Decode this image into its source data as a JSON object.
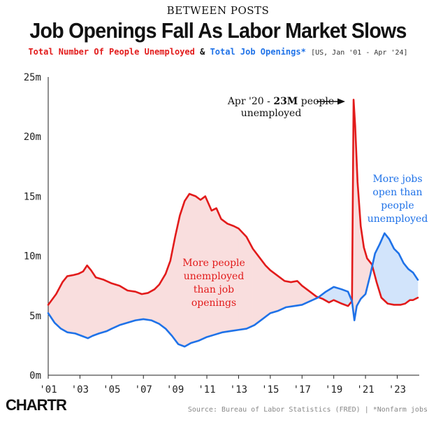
{
  "header": {
    "kicker": "BETWEEN POSTS",
    "title": "Job Openings Fall As Labor Market Slows",
    "subtitle_red": "Total Number Of People Unemployed",
    "subtitle_amp": "&",
    "subtitle_blue": "Total Job Openings*",
    "subtitle_meta": "[US, Jan '01 - Apr '24]"
  },
  "footer": {
    "brand": "CHARTR",
    "source": "Source: Bureau of Labor Statistics (FRED)  | *Nonfarm jobs"
  },
  "colors": {
    "unemployed": "#e21b1b",
    "openings": "#1f72e8",
    "fill_unemployed_higher": "#f9dede",
    "fill_openings_higher": "#d2e4fb"
  },
  "chart_data": {
    "type": "line",
    "xlim": [
      2001,
      2024.3
    ],
    "ylim": [
      0,
      25
    ],
    "y_ticks": [
      0,
      5,
      10,
      15,
      20,
      25
    ],
    "y_tick_labels": [
      "0m",
      "5m",
      "10m",
      "15m",
      "20m",
      "25m"
    ],
    "x_ticks": [
      2001,
      2003,
      2005,
      2007,
      2009,
      2011,
      2013,
      2015,
      2017,
      2019,
      2021,
      2023
    ],
    "x_tick_labels": [
      "'01",
      "'03",
      "'05",
      "'07",
      "'09",
      "'11",
      "'13",
      "'15",
      "'17",
      "'19",
      "'21",
      "'23"
    ],
    "grid": false,
    "series": [
      {
        "name": "Total Number Of People Unemployed",
        "color": "#e21b1b",
        "points": [
          [
            2001.0,
            5.9
          ],
          [
            2001.5,
            6.8
          ],
          [
            2001.9,
            7.8
          ],
          [
            2002.2,
            8.3
          ],
          [
            2002.6,
            8.4
          ],
          [
            2002.9,
            8.5
          ],
          [
            2003.2,
            8.7
          ],
          [
            2003.45,
            9.2
          ],
          [
            2003.7,
            8.8
          ],
          [
            2004.0,
            8.2
          ],
          [
            2004.5,
            8.0
          ],
          [
            2005.0,
            7.7
          ],
          [
            2005.5,
            7.5
          ],
          [
            2006.0,
            7.1
          ],
          [
            2006.5,
            7.0
          ],
          [
            2006.9,
            6.8
          ],
          [
            2007.3,
            6.9
          ],
          [
            2007.7,
            7.2
          ],
          [
            2008.0,
            7.6
          ],
          [
            2008.4,
            8.5
          ],
          [
            2008.7,
            9.6
          ],
          [
            2009.0,
            11.6
          ],
          [
            2009.3,
            13.4
          ],
          [
            2009.6,
            14.6
          ],
          [
            2009.9,
            15.2
          ],
          [
            2010.3,
            15.0
          ],
          [
            2010.6,
            14.7
          ],
          [
            2010.9,
            15.0
          ],
          [
            2011.3,
            13.8
          ],
          [
            2011.6,
            14.0
          ],
          [
            2011.9,
            13.1
          ],
          [
            2012.3,
            12.7
          ],
          [
            2012.7,
            12.5
          ],
          [
            2013.0,
            12.3
          ],
          [
            2013.5,
            11.6
          ],
          [
            2013.9,
            10.6
          ],
          [
            2014.3,
            9.9
          ],
          [
            2014.7,
            9.2
          ],
          [
            2015.0,
            8.8
          ],
          [
            2015.5,
            8.3
          ],
          [
            2015.9,
            7.9
          ],
          [
            2016.3,
            7.8
          ],
          [
            2016.7,
            7.9
          ],
          [
            2017.0,
            7.5
          ],
          [
            2017.5,
            7.0
          ],
          [
            2017.9,
            6.6
          ],
          [
            2018.3,
            6.4
          ],
          [
            2018.7,
            6.1
          ],
          [
            2019.0,
            6.3
          ],
          [
            2019.5,
            6.0
          ],
          [
            2019.9,
            5.8
          ],
          [
            2020.15,
            6.2
          ],
          [
            2020.25,
            23.1
          ],
          [
            2020.35,
            20.9
          ],
          [
            2020.5,
            16.2
          ],
          [
            2020.7,
            12.5
          ],
          [
            2020.9,
            10.7
          ],
          [
            2021.1,
            9.8
          ],
          [
            2021.4,
            9.3
          ],
          [
            2021.7,
            7.8
          ],
          [
            2022.0,
            6.5
          ],
          [
            2022.4,
            6.0
          ],
          [
            2022.8,
            5.9
          ],
          [
            2023.2,
            5.9
          ],
          [
            2023.5,
            6.0
          ],
          [
            2023.8,
            6.3
          ],
          [
            2024.0,
            6.3
          ],
          [
            2024.3,
            6.5
          ]
        ]
      },
      {
        "name": "Total Job Openings*",
        "color": "#1f72e8",
        "points": [
          [
            2001.0,
            5.2
          ],
          [
            2001.4,
            4.4
          ],
          [
            2001.8,
            3.9
          ],
          [
            2002.2,
            3.6
          ],
          [
            2002.7,
            3.5
          ],
          [
            2003.1,
            3.3
          ],
          [
            2003.5,
            3.1
          ],
          [
            2003.8,
            3.3
          ],
          [
            2004.2,
            3.5
          ],
          [
            2004.7,
            3.7
          ],
          [
            2005.0,
            3.9
          ],
          [
            2005.5,
            4.2
          ],
          [
            2006.0,
            4.4
          ],
          [
            2006.5,
            4.6
          ],
          [
            2007.0,
            4.7
          ],
          [
            2007.5,
            4.6
          ],
          [
            2008.0,
            4.3
          ],
          [
            2008.4,
            3.9
          ],
          [
            2008.8,
            3.3
          ],
          [
            2009.2,
            2.6
          ],
          [
            2009.6,
            2.4
          ],
          [
            2010.0,
            2.7
          ],
          [
            2010.5,
            2.9
          ],
          [
            2011.0,
            3.2
          ],
          [
            2011.5,
            3.4
          ],
          [
            2012.0,
            3.6
          ],
          [
            2012.5,
            3.7
          ],
          [
            2013.0,
            3.8
          ],
          [
            2013.5,
            3.9
          ],
          [
            2014.0,
            4.2
          ],
          [
            2014.5,
            4.7
          ],
          [
            2015.0,
            5.2
          ],
          [
            2015.5,
            5.4
          ],
          [
            2016.0,
            5.7
          ],
          [
            2016.5,
            5.8
          ],
          [
            2017.0,
            5.9
          ],
          [
            2017.5,
            6.2
          ],
          [
            2018.0,
            6.5
          ],
          [
            2018.5,
            7.0
          ],
          [
            2019.0,
            7.4
          ],
          [
            2019.5,
            7.2
          ],
          [
            2019.9,
            7.0
          ],
          [
            2020.15,
            6.2
          ],
          [
            2020.3,
            4.6
          ],
          [
            2020.45,
            5.8
          ],
          [
            2020.7,
            6.4
          ],
          [
            2021.0,
            6.8
          ],
          [
            2021.3,
            8.4
          ],
          [
            2021.6,
            10.2
          ],
          [
            2021.9,
            11.0
          ],
          [
            2022.2,
            11.9
          ],
          [
            2022.5,
            11.4
          ],
          [
            2022.8,
            10.6
          ],
          [
            2023.1,
            10.2
          ],
          [
            2023.4,
            9.4
          ],
          [
            2023.7,
            8.9
          ],
          [
            2024.0,
            8.6
          ],
          [
            2024.3,
            8.0
          ]
        ]
      }
    ],
    "annotations": {
      "peak": {
        "x": 2020.25,
        "y": 23.1,
        "text_prefix": "Apr '20 - ",
        "text_bold": "23M",
        "text_suffix": " people",
        "text_line2": "unemployed"
      },
      "unemployed_region": [
        "More people",
        "unemployed",
        "than job",
        "openings"
      ],
      "openings_region": [
        "More jobs",
        "open than",
        "people",
        "unemployed"
      ]
    }
  }
}
